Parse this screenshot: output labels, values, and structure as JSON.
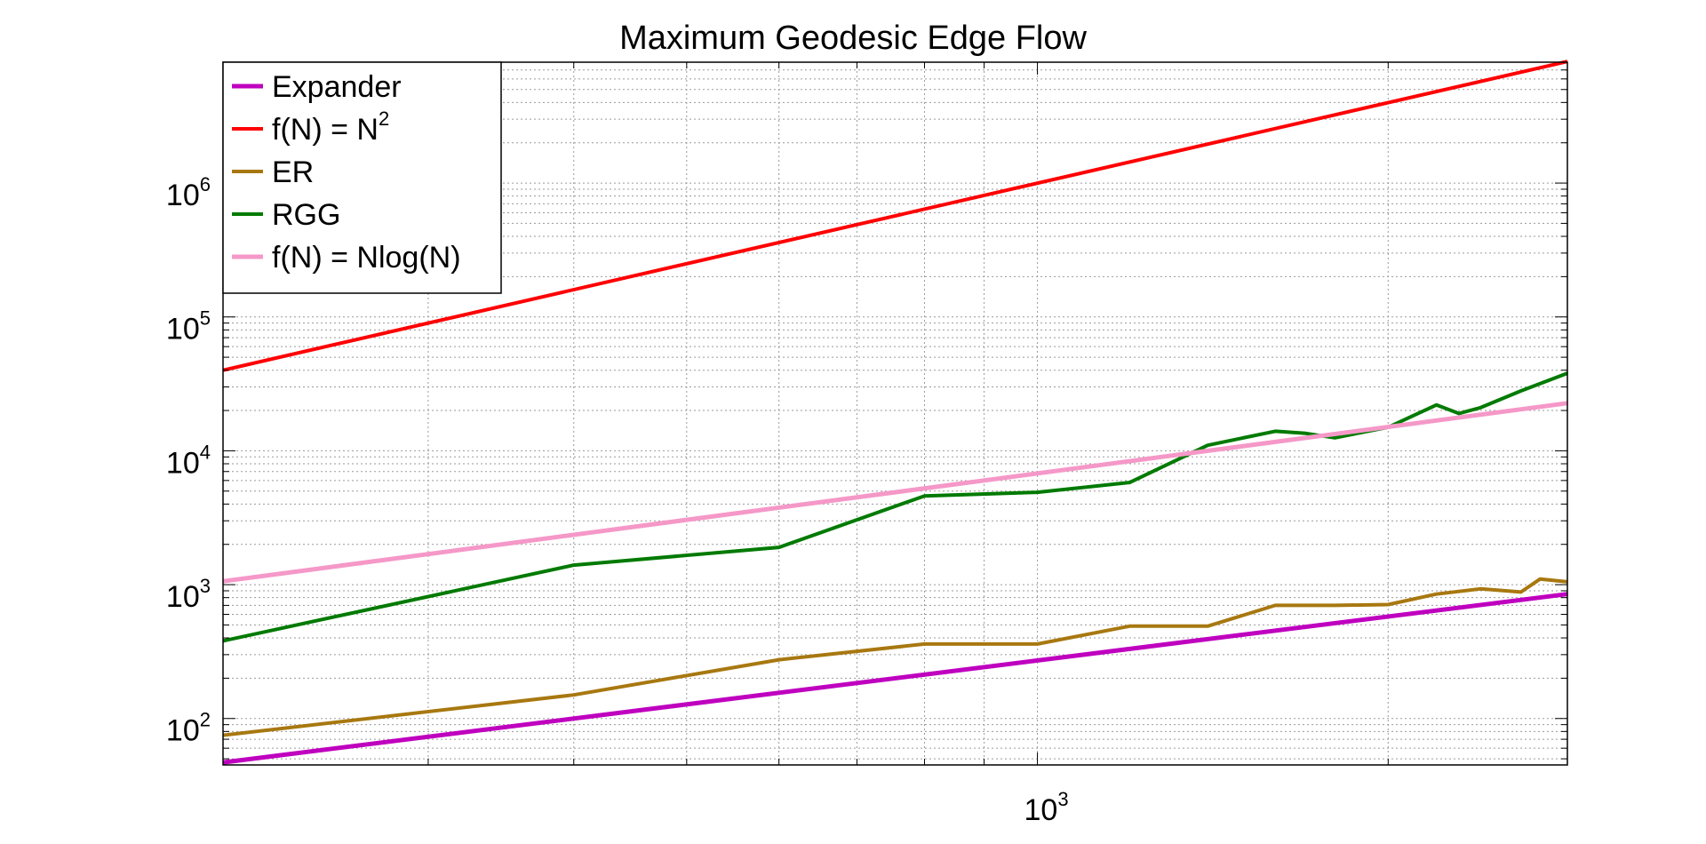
{
  "chart_data": {
    "type": "line",
    "title": "Maximum Geodesic Edge Flow",
    "xlabel": "",
    "ylabel": "",
    "xscale": "log",
    "yscale": "log",
    "xlim": [
      200,
      2850
    ],
    "ylim": [
      45,
      8000000
    ],
    "x_ticks": [
      {
        "value": 1000,
        "base": "10",
        "exp": "3"
      }
    ],
    "y_ticks": [
      {
        "value": 100,
        "base": "10",
        "exp": "2"
      },
      {
        "value": 1000,
        "base": "10",
        "exp": "3"
      },
      {
        "value": 10000,
        "base": "10",
        "exp": "4"
      },
      {
        "value": 100000,
        "base": "10",
        "exp": "5"
      },
      {
        "value": 1000000,
        "base": "10",
        "exp": "6"
      }
    ],
    "grid": true,
    "legend_position": "top-left",
    "series": [
      {
        "name": "Expander",
        "color": "#bf00bf",
        "width": 5,
        "x": [
          200,
          2850
        ],
        "y": [
          47,
          850
        ]
      },
      {
        "name": "f(N) = N",
        "name_sup": "2",
        "color": "#ff0000",
        "width": 4,
        "x": [
          200,
          2850
        ],
        "y": [
          40000,
          8100000
        ]
      },
      {
        "name": "ER",
        "color": "#a87810",
        "width": 4,
        "x": [
          200,
          400,
          600,
          800,
          1000,
          1200,
          1400,
          1600,
          1800,
          2000,
          2200,
          2400,
          2600,
          2700,
          2850
        ],
        "y": [
          75,
          150,
          275,
          360,
          360,
          490,
          490,
          700,
          700,
          710,
          850,
          930,
          880,
          1100,
          1050
        ]
      },
      {
        "name": "RGG",
        "color": "#007a00",
        "width": 4,
        "x": [
          200,
          400,
          600,
          800,
          1000,
          1200,
          1400,
          1600,
          1700,
          1800,
          2000,
          2200,
          2300,
          2400,
          2600,
          2850
        ],
        "y": [
          380,
          1400,
          1900,
          4600,
          4900,
          5800,
          11000,
          14000,
          13500,
          12500,
          15000,
          22000,
          19000,
          21000,
          28000,
          38000
        ]
      },
      {
        "name": "f(N) = Nlog(N)",
        "color": "#f598c8",
        "width": 5,
        "x": [
          200,
          2850
        ],
        "y": [
          1060,
          22700
        ]
      }
    ]
  }
}
